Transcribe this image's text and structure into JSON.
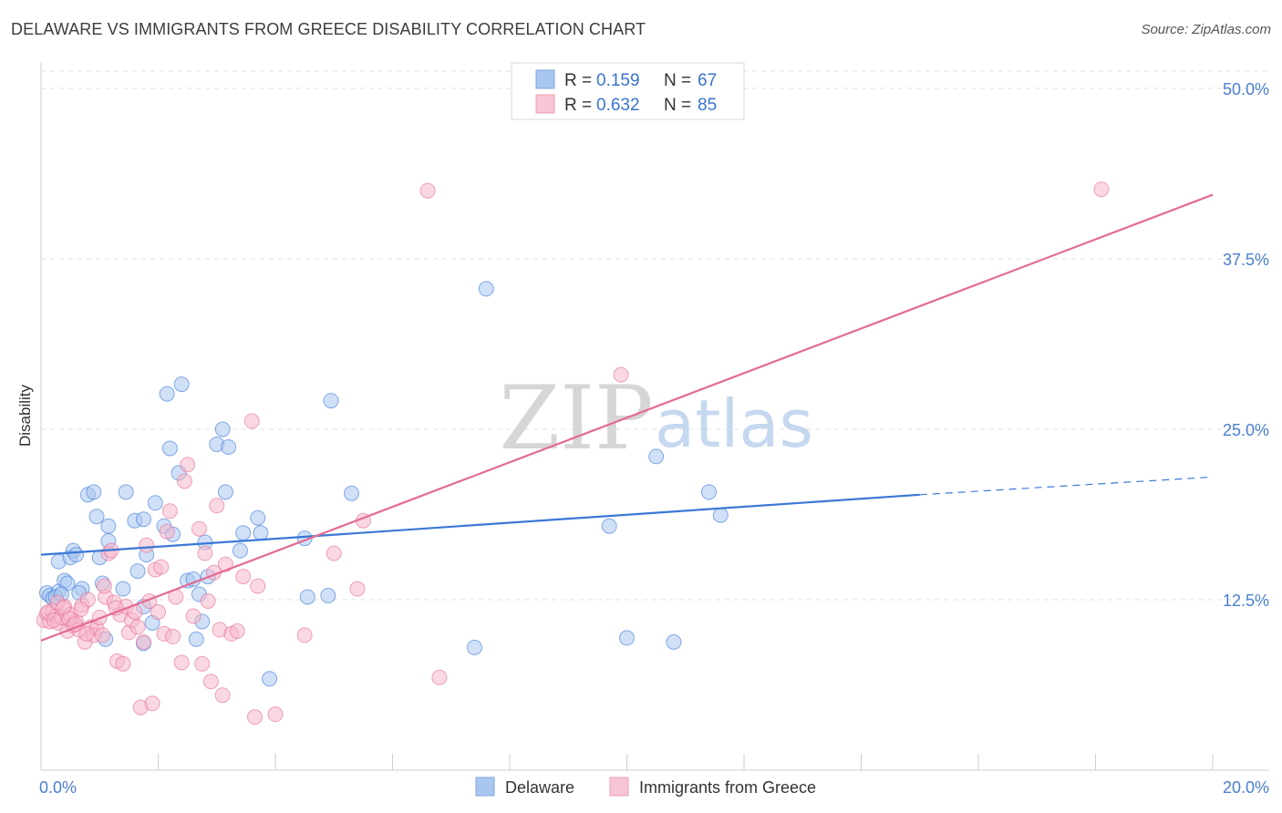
{
  "title": "DELAWARE VS IMMIGRANTS FROM GREECE DISABILITY CORRELATION CHART",
  "source": "Source: ZipAtlas.com",
  "watermark": {
    "zip": "ZIP",
    "atlas": "atlas"
  },
  "legend": {
    "r_label": "R =",
    "n_label": "N =",
    "rows": [
      {
        "name": "Delaware",
        "r": "0.159",
        "n": "67",
        "color": "#a9c6f0"
      },
      {
        "name": "Immigrants from Greece",
        "r": "0.632",
        "n": "85",
        "color": "#f6b8cb"
      }
    ]
  },
  "chart_data": {
    "type": "scatter",
    "title": "DELAWARE VS IMMIGRANTS FROM GREECE DISABILITY CORRELATION CHART",
    "xlabel": "",
    "ylabel": "Disability",
    "xlim": [
      0,
      20
    ],
    "ylim": [
      0,
      50
    ],
    "x_tick_labels": [
      "0.0%",
      "20.0%"
    ],
    "y_ticks": [
      12.5,
      25.0,
      37.5,
      50.0
    ],
    "y_tick_labels": [
      "12.5%",
      "25.0%",
      "37.5%",
      "50.0%"
    ],
    "series": [
      {
        "name": "Delaware",
        "color": "#3a78d6",
        "fill": "#a9c6f0",
        "r": 0.159,
        "n": 67,
        "trend": {
          "x0": 0,
          "y0": 15.8,
          "x1": 15.0,
          "y1": 20.2,
          "dash_to_x": 20,
          "dash_to_y": 21.5
        },
        "points": [
          [
            0.1,
            13.0
          ],
          [
            0.15,
            12.8
          ],
          [
            0.2,
            12.6
          ],
          [
            0.3,
            13.1
          ],
          [
            0.4,
            13.9
          ],
          [
            0.3,
            15.3
          ],
          [
            0.5,
            15.6
          ],
          [
            0.55,
            16.1
          ],
          [
            0.6,
            15.8
          ],
          [
            0.45,
            13.7
          ],
          [
            0.7,
            13.3
          ],
          [
            0.8,
            20.2
          ],
          [
            0.9,
            20.4
          ],
          [
            0.95,
            18.6
          ],
          [
            1.0,
            15.6
          ],
          [
            1.05,
            13.7
          ],
          [
            1.15,
            17.9
          ],
          [
            1.15,
            16.8
          ],
          [
            1.1,
            9.6
          ],
          [
            1.4,
            13.3
          ],
          [
            1.45,
            20.4
          ],
          [
            1.6,
            18.3
          ],
          [
            1.65,
            14.6
          ],
          [
            1.75,
            12.0
          ],
          [
            1.75,
            9.3
          ],
          [
            1.75,
            18.4
          ],
          [
            1.8,
            15.8
          ],
          [
            1.9,
            10.8
          ],
          [
            1.95,
            19.6
          ],
          [
            2.1,
            17.9
          ],
          [
            2.15,
            27.6
          ],
          [
            2.2,
            23.6
          ],
          [
            2.25,
            17.3
          ],
          [
            2.35,
            21.8
          ],
          [
            2.4,
            28.3
          ],
          [
            2.5,
            13.9
          ],
          [
            2.6,
            14.0
          ],
          [
            2.65,
            9.6
          ],
          [
            2.7,
            12.9
          ],
          [
            2.75,
            10.9
          ],
          [
            2.8,
            16.7
          ],
          [
            2.85,
            14.2
          ],
          [
            3.0,
            23.9
          ],
          [
            3.1,
            25.0
          ],
          [
            3.15,
            20.4
          ],
          [
            3.2,
            23.7
          ],
          [
            3.4,
            16.1
          ],
          [
            3.45,
            17.4
          ],
          [
            3.7,
            18.5
          ],
          [
            3.75,
            17.4
          ],
          [
            3.9,
            6.7
          ],
          [
            4.5,
            17.0
          ],
          [
            4.55,
            12.7
          ],
          [
            4.9,
            12.8
          ],
          [
            4.95,
            27.1
          ],
          [
            5.3,
            20.3
          ],
          [
            7.4,
            9.0
          ],
          [
            7.6,
            35.3
          ],
          [
            9.7,
            17.9
          ],
          [
            10.0,
            9.7
          ],
          [
            10.5,
            23.0
          ],
          [
            10.8,
            9.4
          ],
          [
            11.4,
            20.4
          ],
          [
            11.6,
            18.7
          ],
          [
            0.25,
            12.7
          ],
          [
            0.35,
            12.9
          ],
          [
            0.65,
            13.0
          ]
        ]
      },
      {
        "name": "Immigrants from Greece",
        "color": "#e36b94",
        "fill": "#f6b8cb",
        "r": 0.632,
        "n": 85,
        "trend": {
          "x0": 0,
          "y0": 9.5,
          "x1": 20,
          "y1": 42.2
        },
        "points": [
          [
            0.05,
            11.0
          ],
          [
            0.1,
            11.5
          ],
          [
            0.15,
            10.9
          ],
          [
            0.2,
            11.7
          ],
          [
            0.25,
            11.3
          ],
          [
            0.3,
            10.8
          ],
          [
            0.35,
            11.2
          ],
          [
            0.4,
            12.0
          ],
          [
            0.45,
            10.2
          ],
          [
            0.5,
            11.4
          ],
          [
            0.55,
            10.6
          ],
          [
            0.6,
            10.9
          ],
          [
            0.65,
            10.3
          ],
          [
            0.7,
            12.1
          ],
          [
            0.75,
            9.4
          ],
          [
            0.8,
            12.5
          ],
          [
            0.85,
            10.5
          ],
          [
            0.9,
            9.9
          ],
          [
            0.95,
            10.4
          ],
          [
            1.0,
            11.2
          ],
          [
            1.05,
            9.9
          ],
          [
            1.1,
            12.7
          ],
          [
            1.15,
            15.9
          ],
          [
            1.2,
            16.1
          ],
          [
            1.25,
            12.3
          ],
          [
            1.3,
            8.0
          ],
          [
            1.35,
            11.4
          ],
          [
            1.4,
            7.8
          ],
          [
            1.45,
            12.0
          ],
          [
            1.5,
            10.1
          ],
          [
            1.55,
            11.0
          ],
          [
            1.6,
            11.6
          ],
          [
            1.65,
            10.5
          ],
          [
            1.7,
            4.6
          ],
          [
            1.75,
            9.4
          ],
          [
            1.8,
            16.5
          ],
          [
            1.85,
            12.4
          ],
          [
            1.9,
            4.9
          ],
          [
            1.95,
            14.7
          ],
          [
            2.0,
            11.6
          ],
          [
            2.05,
            14.9
          ],
          [
            2.1,
            10.0
          ],
          [
            2.15,
            17.5
          ],
          [
            2.2,
            19.0
          ],
          [
            2.25,
            9.8
          ],
          [
            2.3,
            12.7
          ],
          [
            2.4,
            7.9
          ],
          [
            2.45,
            21.2
          ],
          [
            2.5,
            22.4
          ],
          [
            2.6,
            11.3
          ],
          [
            2.7,
            17.7
          ],
          [
            2.75,
            7.8
          ],
          [
            2.8,
            15.9
          ],
          [
            2.85,
            12.4
          ],
          [
            2.9,
            6.5
          ],
          [
            2.95,
            14.5
          ],
          [
            3.0,
            19.4
          ],
          [
            3.05,
            10.3
          ],
          [
            3.1,
            5.5
          ],
          [
            3.15,
            15.1
          ],
          [
            3.25,
            10.0
          ],
          [
            3.35,
            10.2
          ],
          [
            3.45,
            14.2
          ],
          [
            3.6,
            25.6
          ],
          [
            3.65,
            3.9
          ],
          [
            3.7,
            13.5
          ],
          [
            4.0,
            4.1
          ],
          [
            4.5,
            9.9
          ],
          [
            5.0,
            15.9
          ],
          [
            5.4,
            13.3
          ],
          [
            5.5,
            18.3
          ],
          [
            6.6,
            42.5
          ],
          [
            6.8,
            6.8
          ],
          [
            9.9,
            29.0
          ],
          [
            18.1,
            42.6
          ],
          [
            0.12,
            11.6
          ],
          [
            0.22,
            11.0
          ],
          [
            0.28,
            12.3
          ],
          [
            0.38,
            11.9
          ],
          [
            0.48,
            11.1
          ],
          [
            0.58,
            10.7
          ],
          [
            0.68,
            11.8
          ],
          [
            0.78,
            10.0
          ],
          [
            1.08,
            13.5
          ],
          [
            1.28,
            11.9
          ]
        ]
      }
    ]
  }
}
